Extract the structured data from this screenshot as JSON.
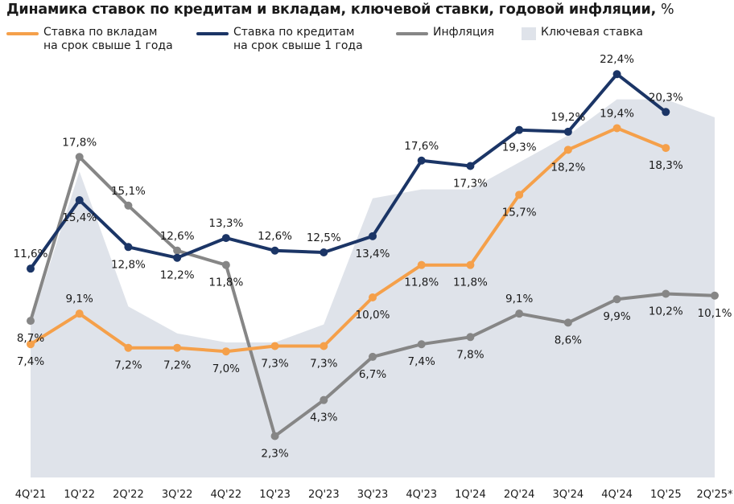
{
  "title": {
    "main": "Динамика ставок по кредитам и вкладам, ключевой ставки, годовой инфляции,",
    "unit": "%"
  },
  "legend": [
    {
      "line1": "Ставка по вкладам",
      "line2": "на срок свыше 1 года",
      "color": "#f5a04a",
      "kind": "line"
    },
    {
      "line1": "Ставка по кредитам",
      "line2": "на срок свыше 1 года",
      "color": "#1b3566",
      "kind": "line"
    },
    {
      "line1": "Инфляция",
      "line2": "",
      "color": "#868686",
      "kind": "line"
    },
    {
      "line1": "Ключевая ставка",
      "line2": "",
      "color": "#dfe3ea",
      "kind": "area"
    }
  ],
  "chart_data": {
    "type": "line",
    "title": "Динамика ставок по кредитам и вкладам, ключевой ставки, годовой инфляции, %",
    "categories": [
      "4Q'21",
      "1Q'22",
      "2Q'22",
      "3Q'22",
      "4Q'22",
      "1Q'23",
      "2Q'23",
      "3Q'23",
      "4Q'23",
      "1Q'24",
      "2Q'24",
      "3Q'24",
      "4Q'24",
      "1Q'25",
      "2Q'25*"
    ],
    "ylim": [
      0,
      24
    ],
    "grid": false,
    "legend_position": "top",
    "series": [
      {
        "name": "Ставка по вкладам на срок свыше 1 года",
        "color": "#f5a04a",
        "values": [
          7.4,
          9.1,
          7.2,
          7.2,
          7.0,
          7.3,
          7.3,
          10.0,
          11.8,
          11.8,
          15.7,
          18.2,
          19.4,
          18.3,
          null
        ],
        "labels": [
          "7,4%",
          "9,1%",
          "7,2%",
          "7,2%",
          "7,0%",
          "7,3%",
          "7,3%",
          "10,0%",
          "11,8%",
          "11,8%",
          "15,7%",
          "18,2%",
          "19,4%",
          "18,3%",
          null
        ]
      },
      {
        "name": "Ставка по кредитам на срок свыше 1 года",
        "color": "#1b3566",
        "values": [
          11.6,
          15.4,
          12.8,
          12.2,
          13.3,
          12.6,
          12.5,
          13.4,
          17.6,
          17.3,
          19.3,
          19.2,
          22.4,
          20.3,
          null
        ],
        "labels": [
          "11,6%",
          "15,4%",
          "12,8%",
          "12,2%",
          "13,3%",
          "12,6%",
          "12,5%",
          "13,4%",
          "17,6%",
          "17,3%",
          "19,3%",
          "19,2%",
          "22,4%",
          "20,3%",
          null
        ]
      },
      {
        "name": "Инфляция",
        "color": "#868686",
        "values": [
          8.7,
          17.8,
          15.1,
          12.6,
          11.8,
          2.3,
          4.3,
          6.7,
          7.4,
          7.8,
          9.1,
          8.6,
          9.9,
          10.2,
          10.1
        ],
        "labels": [
          "8,7%",
          "17,8%",
          "15,1%",
          "12,6%",
          "11,8%",
          "2,3%",
          "4,3%",
          "6,7%",
          "7,4%",
          "7,8%",
          "9,1%",
          "8,6%",
          "9,9%",
          "10,2%",
          "10,1%"
        ]
      },
      {
        "name": "Ключевая ставка",
        "color": "#dfe3ea",
        "type": "area",
        "values": [
          8.5,
          17.0,
          9.5,
          8.0,
          7.5,
          7.5,
          8.5,
          15.5,
          16.0,
          16.0,
          17.5,
          19.0,
          21.0,
          21.0,
          20.0
        ]
      }
    ]
  }
}
